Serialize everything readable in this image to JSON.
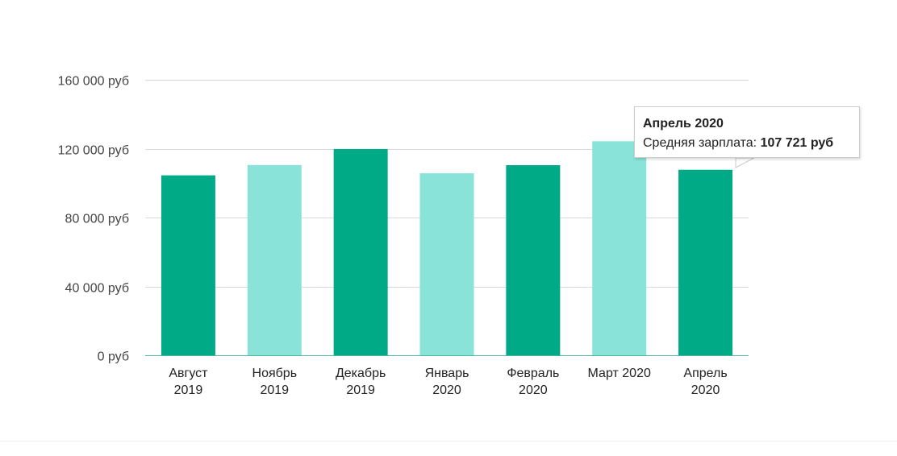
{
  "chart_data": {
    "type": "bar",
    "categories": [
      [
        "Август",
        "2019"
      ],
      [
        "Ноябрь",
        "2019"
      ],
      [
        "Декабрь",
        "2019"
      ],
      [
        "Январь",
        "2020"
      ],
      [
        "Февраль",
        "2020"
      ],
      [
        "Март 2020"
      ],
      [
        "Апрель",
        "2020"
      ]
    ],
    "values": [
      104500,
      110500,
      119800,
      105700,
      110400,
      124300,
      107721
    ],
    "bar_colors": [
      "#00aa86",
      "#8ae3d9",
      "#00aa86",
      "#8ae3d9",
      "#00aa86",
      "#8ae3d9",
      "#00aa86"
    ],
    "ylim": [
      0,
      160000
    ],
    "yticks": [
      {
        "value": 0,
        "label": "0 руб"
      },
      {
        "value": 40000,
        "label": "40 000 руб"
      },
      {
        "value": 80000,
        "label": "80 000 руб"
      },
      {
        "value": 120000,
        "label": "120 000 руб"
      },
      {
        "value": 160000,
        "label": "160 000 руб"
      }
    ],
    "grid": true,
    "title": "",
    "xlabel": "",
    "ylabel": "",
    "axis_color": "#4fb5a0",
    "grid_color": "#d9d9d9"
  },
  "tooltip": {
    "title": "Апрель 2020",
    "label": "Средняя зарплата: ",
    "value": "107 721 руб"
  }
}
